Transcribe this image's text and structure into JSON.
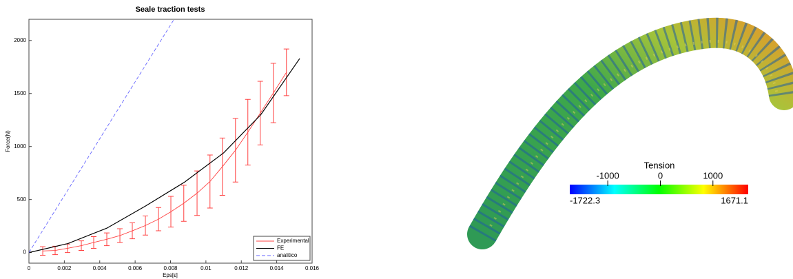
{
  "chart_data": [
    {
      "type": "line",
      "title": "Seale traction tests",
      "xlabel": "Eps[ε]",
      "ylabel": "Force(N)",
      "xlim": [
        0,
        0.016
      ],
      "xticks": [
        0,
        0.002,
        0.004,
        0.006,
        0.008,
        0.01,
        0.012,
        0.014,
        0.016
      ],
      "ylim": [
        -100,
        2200
      ],
      "yticks": [
        0,
        500,
        1000,
        1500,
        2000
      ],
      "legend": "lower right",
      "series": [
        {
          "name": "Experimental",
          "color": "#ff4040",
          "dash": false,
          "x": [
            0.00078,
            0.00148,
            0.00218,
            0.00296,
            0.00366,
            0.0044,
            0.00514,
            0.00584,
            0.00658,
            0.00732,
            0.00802,
            0.00875,
            0.0095,
            0.01023,
            0.01093,
            0.01167,
            0.01237,
            0.01307,
            0.01381,
            0.01455
          ],
          "values": [
            15,
            20,
            40,
            65,
            95,
            125,
            160,
            205,
            255,
            315,
            385,
            465,
            560,
            670,
            810,
            965,
            1135,
            1315,
            1505,
            1700
          ],
          "errors": [
            40,
            40,
            40,
            45,
            55,
            60,
            65,
            75,
            90,
            110,
            145,
            170,
            210,
            250,
            270,
            300,
            310,
            300,
            280,
            220
          ]
        },
        {
          "name": "FE",
          "color": "#000000",
          "dash": false,
          "x": [
            0,
            0.0022,
            0.0044,
            0.0066,
            0.0088,
            0.011,
            0.0131,
            0.0153
          ],
          "values": [
            0,
            85,
            230,
            440,
            665,
            940,
            1300,
            1830
          ]
        },
        {
          "name": "analitico",
          "color": "#6666ff",
          "dash": true,
          "x": [
            0,
            0.0082
          ],
          "values": [
            0,
            2200
          ]
        }
      ]
    },
    {
      "type": "colorbar",
      "title": "Tension",
      "clim": [
        -1722.3,
        1671.1
      ],
      "ticks": [
        -1000,
        0,
        1000
      ],
      "colors": [
        "#0000ff",
        "#00ffff",
        "#00ff00",
        "#ffff00",
        "#ff0000"
      ]
    }
  ]
}
